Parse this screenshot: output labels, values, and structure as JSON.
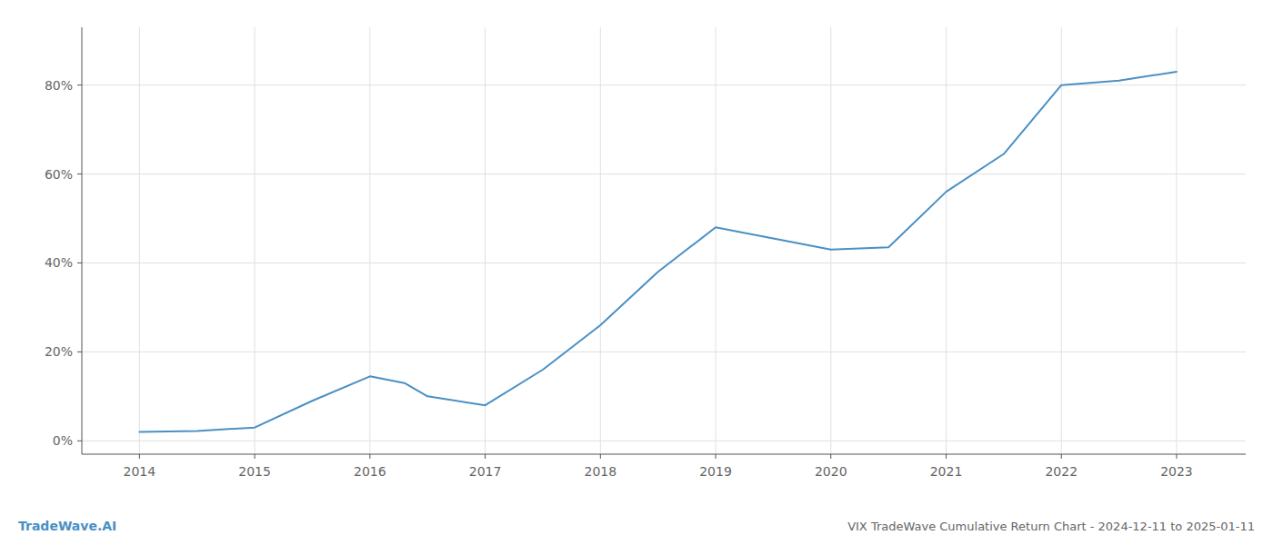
{
  "chart_data": {
    "type": "line",
    "title": "VIX TradeWave Cumulative Return Chart - 2024-12-11 to 2025-01-11",
    "annotations": [
      "TradeWave.AI"
    ],
    "x": [
      2014,
      2014.5,
      2015,
      2015.5,
      2016,
      2016.3,
      2016.5,
      2017,
      2017.5,
      2018,
      2018.5,
      2019,
      2019.5,
      2020,
      2020.5,
      2021,
      2021.5,
      2022,
      2022.5,
      2023
    ],
    "values": [
      0.02,
      0.022,
      0.03,
      0.09,
      0.145,
      0.13,
      0.1,
      0.08,
      0.16,
      0.26,
      0.38,
      0.48,
      0.455,
      0.43,
      0.435,
      0.56,
      0.645,
      0.8,
      0.81,
      0.83
    ],
    "color": "#4a90c4",
    "xlim": [
      2013.5,
      2023.6
    ],
    "ylim": [
      -0.03,
      0.93
    ],
    "xticks": [
      2014,
      2015,
      2016,
      2017,
      2018,
      2019,
      2020,
      2021,
      2022,
      2023
    ],
    "yticks": [
      {
        "value": 0.0,
        "label": "0%"
      },
      {
        "value": 0.2,
        "label": "20%"
      },
      {
        "value": 0.4,
        "label": "40%"
      },
      {
        "value": 0.6,
        "label": "60%"
      },
      {
        "value": 0.8,
        "label": "80%"
      }
    ],
    "grid": true
  }
}
